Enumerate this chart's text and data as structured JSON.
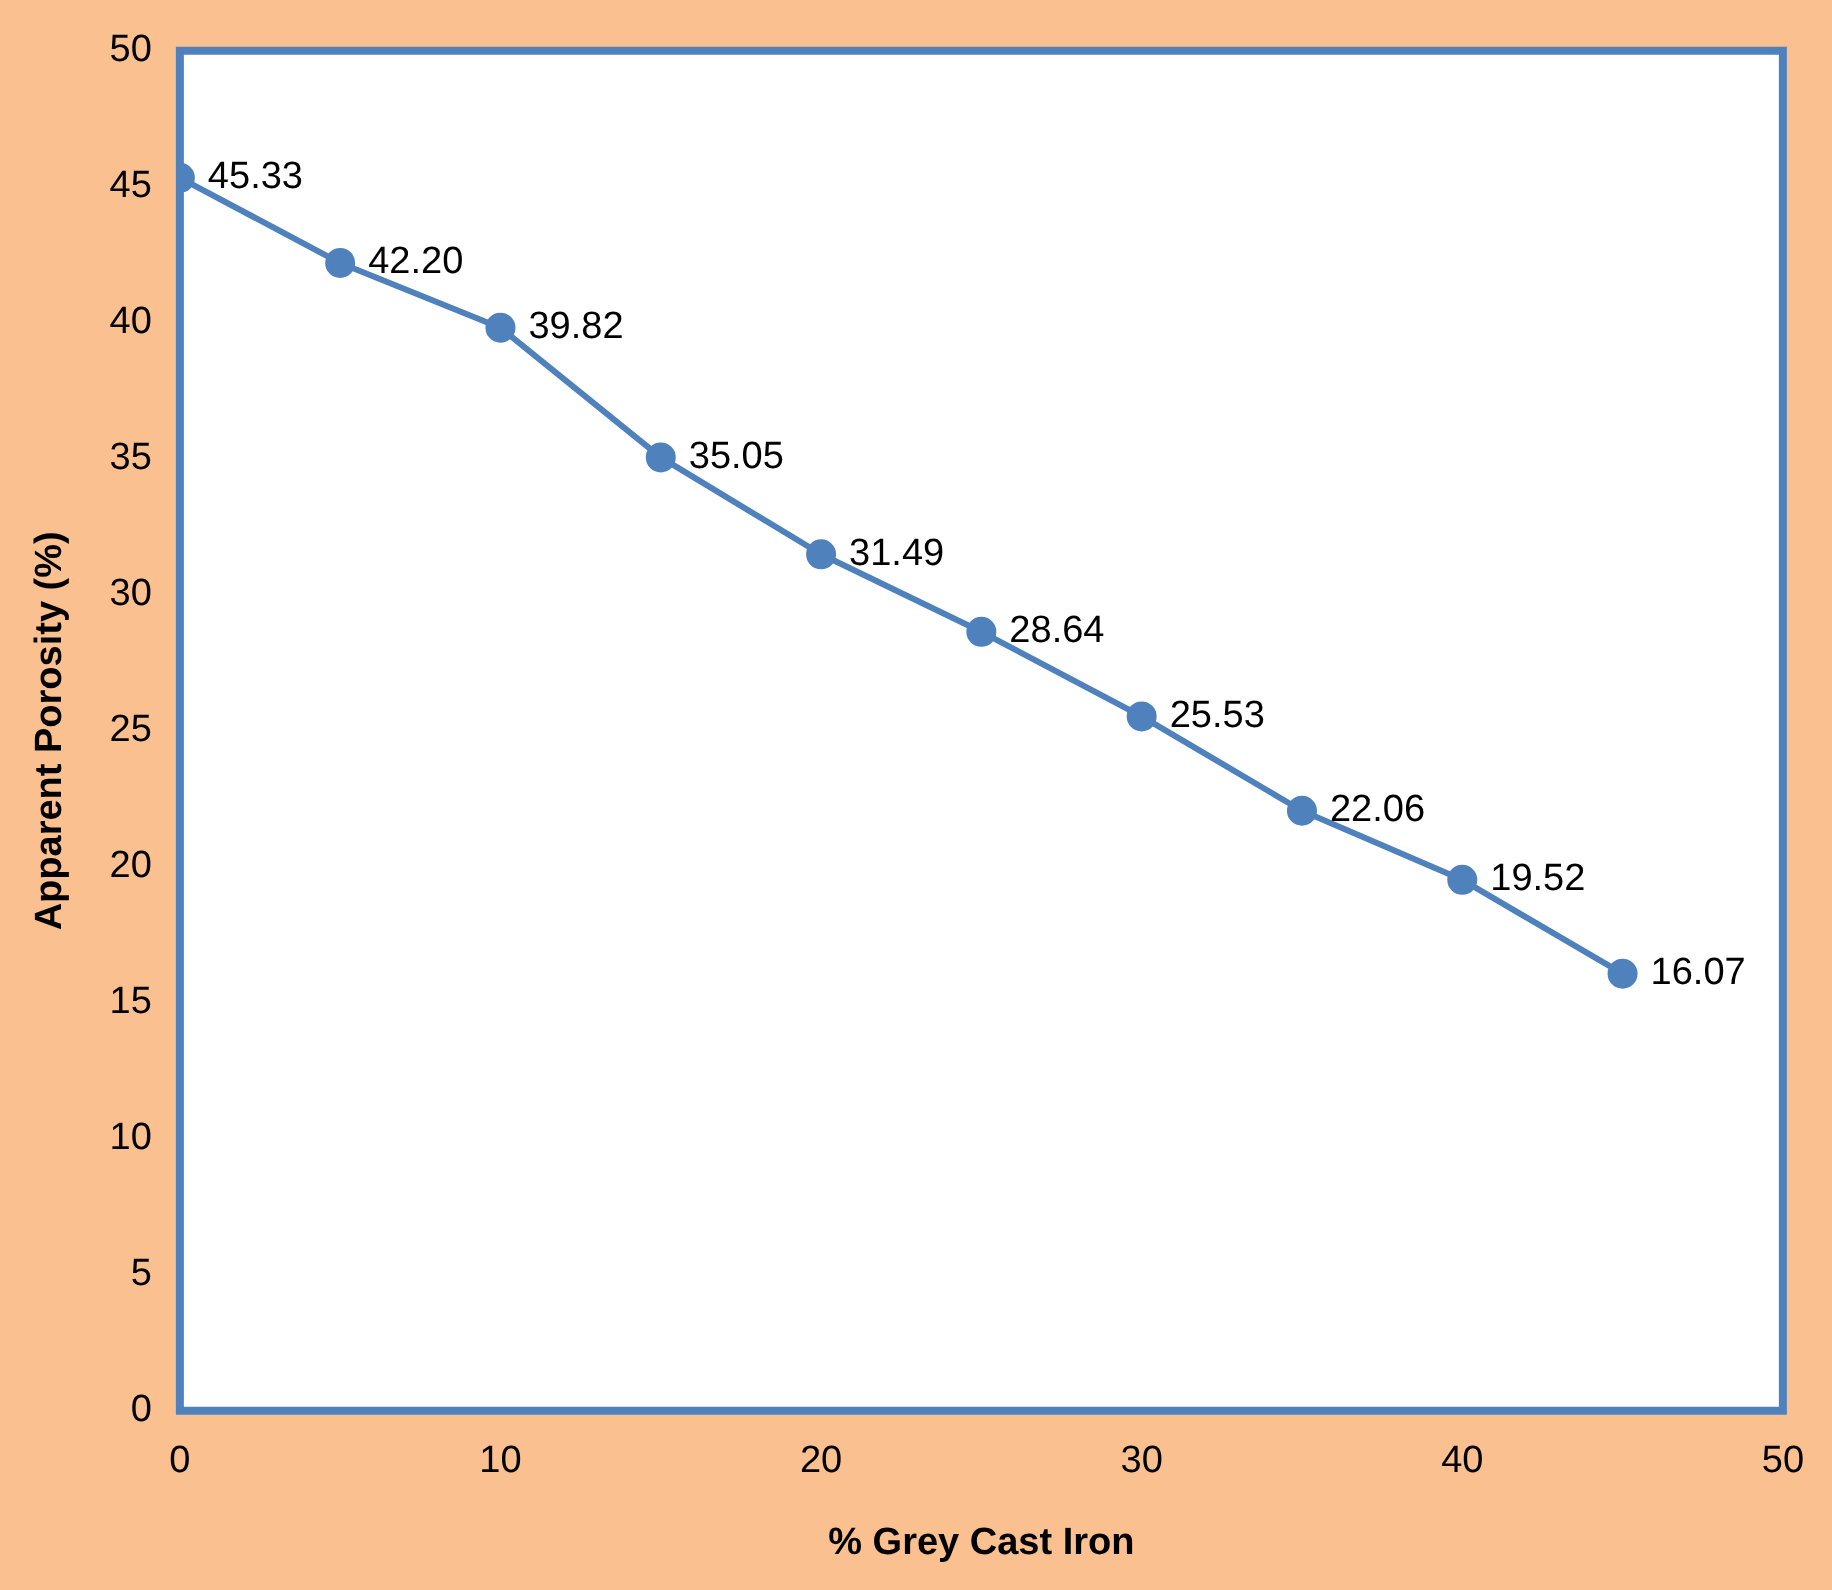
{
  "chart_data": {
    "type": "line",
    "xlabel": "% Grey Cast Iron",
    "ylabel": "Apparent Porosity (%)",
    "x": [
      0,
      5,
      10,
      15,
      20,
      25,
      30,
      35,
      40,
      45
    ],
    "series": [
      {
        "color": "#4f81bd",
        "values": [
          45.33,
          42.2,
          39.82,
          35.05,
          31.49,
          28.64,
          25.53,
          22.06,
          19.52,
          16.07
        ],
        "value_labels": [
          "45.33",
          "42.20",
          "39.82",
          "35.05",
          "31.49",
          "28.64",
          "25.53",
          "22.06",
          "19.52",
          "16.07"
        ]
      }
    ],
    "xlim": [
      0,
      50
    ],
    "xticks": [
      0,
      10,
      20,
      30,
      40,
      50
    ],
    "ylim": [
      0,
      50
    ],
    "yticks": [
      0,
      5,
      10,
      15,
      20,
      25,
      30,
      35,
      40,
      45,
      50
    ],
    "grid": false,
    "legend": false,
    "marker": "circle",
    "line_style": "solid"
  }
}
